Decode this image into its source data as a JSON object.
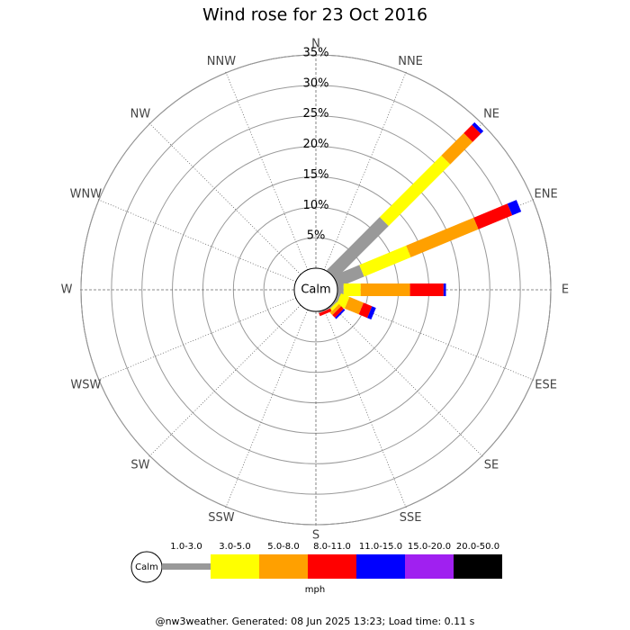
{
  "chart_data": {
    "type": "windrose",
    "title": "Wind rose for 23 Oct 2016",
    "categories": [
      "N",
      "NNE",
      "NE",
      "ENE",
      "E",
      "ESE",
      "SE",
      "SSE",
      "S",
      "SSW",
      "SW",
      "WSW",
      "W",
      "WNW",
      "NW",
      "NNW"
    ],
    "calm_label": "Calm",
    "rlim": [
      0,
      35
    ],
    "rticks": [
      {
        "value": 5,
        "label": "5%"
      },
      {
        "value": 10,
        "label": "10%"
      },
      {
        "value": 15,
        "label": "15%"
      },
      {
        "value": 20,
        "label": "20%"
      },
      {
        "value": 25,
        "label": "25%"
      },
      {
        "value": 30,
        "label": "30%"
      },
      {
        "value": 35,
        "label": "35%"
      }
    ],
    "series": [
      {
        "name": "1.0-3.0",
        "color": "#999999",
        "values": [
          0,
          0,
          12.3,
          4.6,
          1,
          0.5,
          0.3,
          0.2,
          0,
          0,
          0,
          0,
          0,
          0,
          0,
          0
        ]
      },
      {
        "name": "3.0-5.0",
        "color": "#ffff00",
        "values": [
          0,
          0,
          14.3,
          8.3,
          2.8,
          1.5,
          0.5,
          0,
          0,
          0,
          0,
          0,
          0,
          0,
          0,
          0
        ]
      },
      {
        "name": "5.0-8.0",
        "color": "#ffa000",
        "values": [
          0,
          0,
          5.2,
          12,
          8.1,
          2.5,
          0.5,
          0,
          0,
          0,
          0,
          0,
          0,
          0,
          0,
          0
        ]
      },
      {
        "name": "8.0-11.0",
        "color": "#ff0000",
        "values": [
          0,
          0,
          1.9,
          6,
          5.5,
          1.5,
          0.6,
          0.5,
          0,
          0,
          0,
          0,
          0,
          0,
          0,
          0
        ]
      },
      {
        "name": "11.0-15.0",
        "color": "#0000ff",
        "values": [
          0,
          0,
          0.6,
          1.6,
          0.4,
          0.7,
          0.3,
          0,
          0,
          0,
          0,
          0,
          0,
          0,
          0,
          0
        ]
      },
      {
        "name": "15.0-20.0",
        "color": "#a020f0",
        "values": [
          0,
          0,
          0,
          0,
          0,
          0,
          0,
          0,
          0,
          0,
          0,
          0,
          0,
          0,
          0,
          0
        ]
      },
      {
        "name": "20.0-50.0",
        "color": "#000000",
        "values": [
          0,
          0,
          0,
          0,
          0,
          0,
          0,
          0,
          0,
          0,
          0,
          0,
          0,
          0,
          0,
          0
        ]
      }
    ],
    "legend_unit": "mph",
    "footer": "@nw3weather. Generated: 08 Jun 2025 13:23; Load time: 0.11 s"
  }
}
